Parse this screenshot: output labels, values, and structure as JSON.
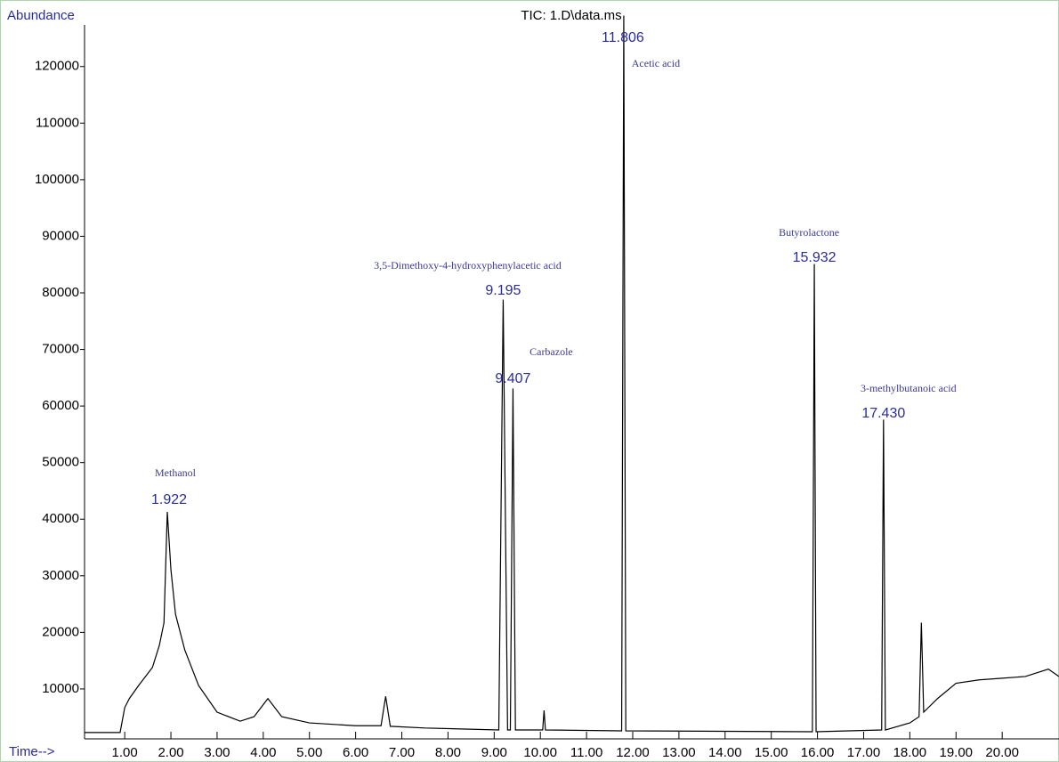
{
  "chart_data": {
    "type": "line",
    "title": "TIC: 1.D\\data.ms",
    "ylabel": "Abundance",
    "xlabel": "Time-->",
    "xlim": [
      0.13,
      21.23
    ],
    "ylim": [
      1180,
      130500
    ],
    "xticks": [
      {
        "value": 1,
        "label": "1.00"
      },
      {
        "value": 2,
        "label": "2.00"
      },
      {
        "value": 3,
        "label": "3.00"
      },
      {
        "value": 4,
        "label": "4.00"
      },
      {
        "value": 5,
        "label": "5.00"
      },
      {
        "value": 6,
        "label": "6.00"
      },
      {
        "value": 7,
        "label": "7.00"
      },
      {
        "value": 8,
        "label": "8.00"
      },
      {
        "value": 9,
        "label": "9.00"
      },
      {
        "value": 10,
        "label": "10.00"
      },
      {
        "value": 11,
        "label": "11.00"
      },
      {
        "value": 12,
        "label": "12.00"
      },
      {
        "value": 13,
        "label": "13.00"
      },
      {
        "value": 14,
        "label": "14.00"
      },
      {
        "value": 15,
        "label": "15.00"
      },
      {
        "value": 16,
        "label": "16.00"
      },
      {
        "value": 17,
        "label": "17.00"
      },
      {
        "value": 18,
        "label": "18.00"
      },
      {
        "value": 19,
        "label": "19.00"
      },
      {
        "value": 20,
        "label": "20.00"
      }
    ],
    "yticks": [
      10000,
      20000,
      30000,
      40000,
      50000,
      60000,
      70000,
      80000,
      90000,
      100000,
      110000,
      120000
    ],
    "series": [
      {
        "name": "TIC",
        "color": "#000000",
        "x": [
          0.13,
          0.9,
          1.0,
          1.1,
          1.3,
          1.6,
          1.75,
          1.85,
          1.922,
          2.0,
          2.1,
          2.3,
          2.6,
          3.0,
          3.5,
          3.8,
          4.1,
          4.4,
          5.0,
          6.0,
          6.55,
          6.65,
          6.75,
          7.5,
          9.1,
          9.195,
          9.29,
          9.35,
          9.407,
          9.46,
          10.05,
          10.08,
          10.11,
          11.76,
          11.806,
          11.85,
          15.89,
          15.932,
          15.97,
          17.39,
          17.43,
          17.47,
          18.0,
          18.2,
          18.25,
          18.3,
          18.6,
          19.0,
          19.5,
          20.0,
          20.5,
          21.0,
          21.23
        ],
        "values": [
          2300,
          2300,
          6700,
          8300,
          10600,
          13800,
          17700,
          21700,
          41300,
          31100,
          23200,
          16900,
          10600,
          5900,
          4300,
          5100,
          8300,
          5100,
          4000,
          3500,
          3500,
          8700,
          3400,
          3100,
          2750,
          78800,
          2750,
          2750,
          63100,
          2750,
          2750,
          6200,
          2750,
          2600,
          129000,
          2600,
          2440,
          85100,
          2440,
          2750,
          57600,
          2750,
          4000,
          5100,
          21700,
          5900,
          8300,
          11000,
          11600,
          11900,
          12200,
          13500,
          12200
        ]
      }
    ],
    "annotations": [
      {
        "name": "Methanol",
        "rt": 1.922
      },
      {
        "name": "3,5-Dimethoxy-4-hydroxyphenylacetic acid",
        "rt": 9.195
      },
      {
        "name": "Carbazole",
        "rt": 9.407
      },
      {
        "name": "Acetic acid",
        "rt": 11.806
      },
      {
        "name": "Butyrolactone",
        "rt": 15.932
      },
      {
        "name": "3-methylbutanoic acid",
        "rt": {
          "value": 17.43,
          "label": "17.430"
        }
      }
    ]
  }
}
